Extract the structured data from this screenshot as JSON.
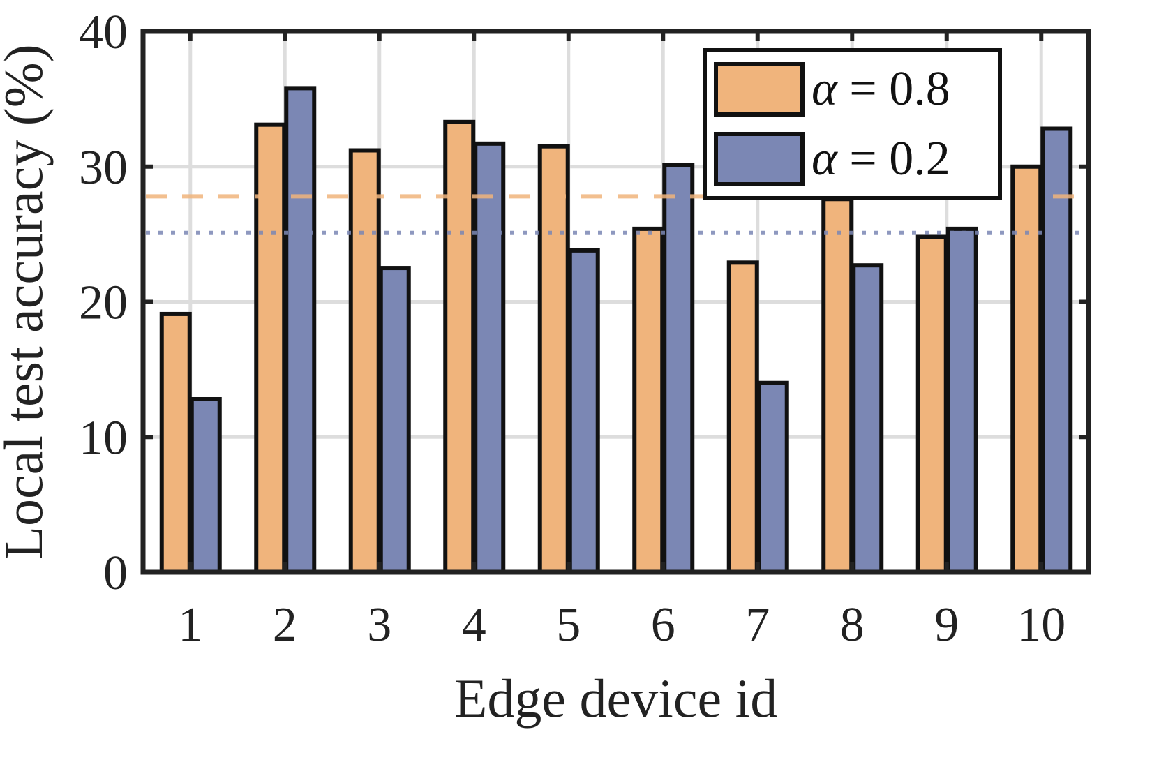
{
  "chart_data": {
    "type": "bar",
    "xlabel": "Edge device id",
    "ylabel": "Local test accuracy (%)",
    "categories": [
      "1",
      "2",
      "3",
      "4",
      "5",
      "6",
      "7",
      "8",
      "9",
      "10"
    ],
    "ylim": [
      0,
      40
    ],
    "yticks": [
      "0",
      "10",
      "20",
      "30",
      "40"
    ],
    "grid": true,
    "legend_position": "top-right",
    "series": [
      {
        "name": "α = 0.8",
        "symbol": "α",
        "value_text": "= 0.8",
        "color": "#F0B47C",
        "values": [
          19.1,
          33.1,
          31.2,
          33.3,
          31.5,
          25.4,
          22.9,
          27.6,
          24.8,
          30.0
        ],
        "mean": 27.8,
        "mean_style": "dashed"
      },
      {
        "name": "α = 0.2",
        "symbol": "α",
        "value_text": "= 0.2",
        "color": "#7B87B4",
        "values": [
          12.8,
          35.8,
          22.5,
          31.7,
          23.8,
          30.1,
          14.0,
          22.7,
          25.4,
          32.8
        ],
        "mean": 25.1,
        "mean_style": "dotted"
      }
    ]
  }
}
